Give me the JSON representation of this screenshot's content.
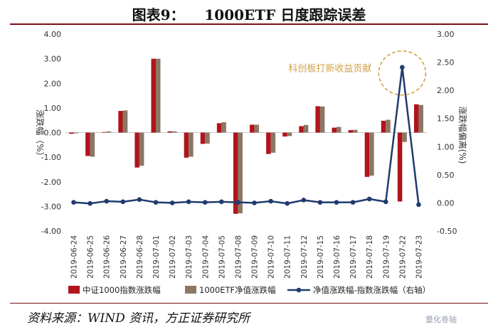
{
  "header": {
    "title": "图表9：    1000ETF 日度跟踪误差"
  },
  "source": {
    "text": "资料来源：WIND 资讯，方正证券研究所"
  },
  "watermark": {
    "text": "量化卷轴"
  },
  "colors": {
    "index_bar": "#b0141c",
    "etf_bar": "#8b7764",
    "diff_line": "#1f3a6e",
    "annotation": "#d3a24a",
    "title_rule": "#7a0f14"
  },
  "chart_data": {
    "type": "bar",
    "categories": [
      "2019-06-24",
      "2019-06-25",
      "2019-06-26",
      "2019-06-27",
      "2019-06-28",
      "2019-07-01",
      "2019-07-02",
      "2019-07-03",
      "2019-07-04",
      "2019-07-05",
      "2019-07-08",
      "2019-07-09",
      "2019-07-10",
      "2019-07-11",
      "2019-07-12",
      "2019-07-15",
      "2019-07-16",
      "2019-07-17",
      "2019-07-18",
      "2019-07-19",
      "2019-07-22",
      "2019-07-23"
    ],
    "series": [
      {
        "name": "中证1000指数涨跌幅",
        "type": "bar",
        "axis": "left",
        "values": [
          -0.05,
          -0.95,
          0.02,
          0.88,
          -1.42,
          3.0,
          0.05,
          -1.02,
          -0.46,
          0.38,
          -3.3,
          0.32,
          -0.87,
          -0.16,
          0.26,
          1.07,
          0.2,
          0.1,
          -1.8,
          0.48,
          -2.8,
          1.15
        ]
      },
      {
        "name": "1000ETF净值涨跌幅",
        "type": "bar",
        "axis": "left",
        "values": [
          -0.03,
          -0.98,
          0.05,
          0.9,
          -1.35,
          3.0,
          0.05,
          -0.98,
          -0.45,
          0.42,
          -3.28,
          0.32,
          -0.82,
          -0.14,
          0.31,
          1.06,
          0.23,
          0.11,
          -1.75,
          0.52,
          -0.38,
          1.12
        ]
      },
      {
        "name": "净值涨跌幅-指数涨跌幅（右轴）",
        "type": "line",
        "axis": "right",
        "values": [
          0.01,
          -0.01,
          0.03,
          0.02,
          0.06,
          0.01,
          0.0,
          0.02,
          0.01,
          0.02,
          0.01,
          0.0,
          0.03,
          -0.01,
          0.05,
          0.01,
          0.01,
          0.01,
          0.07,
          0.02,
          2.41,
          -0.03
        ]
      }
    ],
    "ylabel": "涨跌幅（%）",
    "y2label": "涨跌幅偏离(%)",
    "ylim": [
      -4.0,
      4.0
    ],
    "y2lim": [
      -0.5,
      3.0
    ],
    "yticks": [
      "4.00",
      "3.00",
      "2.00",
      "1.00",
      "0.00",
      "-1.00",
      "-2.00",
      "-3.00",
      "-4.00"
    ],
    "y2ticks": [
      "3.00",
      "2.50",
      "2.00",
      "1.50",
      "1.00",
      "0.50",
      "0.00",
      "-0.50"
    ],
    "annotation": {
      "text": "科创板打新收益贡献",
      "category": "2019-07-22"
    },
    "legend": {
      "placement": "bottom"
    }
  }
}
